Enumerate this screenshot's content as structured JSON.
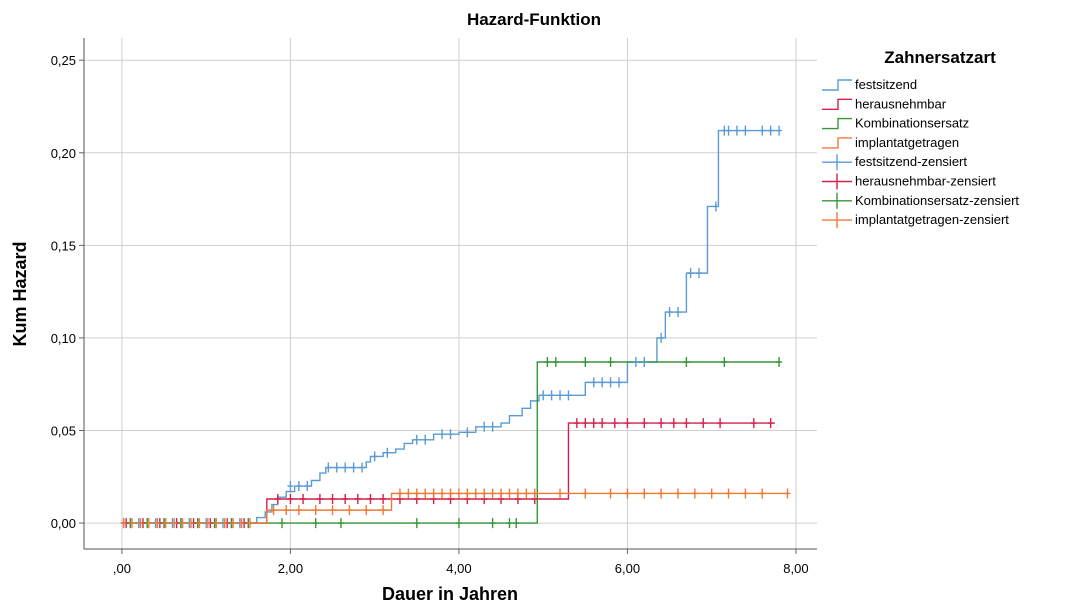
{
  "chart_data": {
    "type": "line",
    "title": "Hazard-Funktion",
    "xlabel": "Dauer in Jahren",
    "ylabel": "Kum Hazard",
    "xlim": [
      -0.45,
      8.25
    ],
    "ylim": [
      -0.014,
      0.262
    ],
    "x_ticks": [
      0,
      2,
      4,
      6,
      8
    ],
    "x_tick_labels": [
      ",00",
      "2,00",
      "4,00",
      "6,00",
      "8,00"
    ],
    "y_ticks": [
      0,
      0.05,
      0.1,
      0.15,
      0.2,
      0.25
    ],
    "y_tick_labels": [
      "0,00",
      "0,05",
      "0,10",
      "0,15",
      "0,20",
      "0,25"
    ],
    "grid": true,
    "legend": {
      "title": "Zahnersatzart",
      "placement": "right",
      "entries": [
        {
          "label": "festsitzend",
          "kind": "step",
          "color": "#5b9bd5"
        },
        {
          "label": "herausnehmbar",
          "kind": "step",
          "color": "#d6204c"
        },
        {
          "label": "Kombinationsersatz",
          "kind": "step",
          "color": "#38963a"
        },
        {
          "label": "implantatgetragen",
          "kind": "step",
          "color": "#ef7a37"
        },
        {
          "label": "festsitzend-zensiert",
          "kind": "censor",
          "color": "#5b9bd5"
        },
        {
          "label": "herausnehmbar-zensiert",
          "kind": "censor",
          "color": "#d6204c"
        },
        {
          "label": "Kombinationsersatz-zensiert",
          "kind": "censor",
          "color": "#38963a"
        },
        {
          "label": "implantatgetragen-zensiert",
          "kind": "censor",
          "color": "#ef7a37"
        }
      ]
    },
    "series": [
      {
        "name": "festsitzend",
        "color": "#5b9bd5",
        "steps": [
          [
            0,
            0
          ],
          [
            1.6,
            0.003
          ],
          [
            1.7,
            0.006
          ],
          [
            1.78,
            0.01
          ],
          [
            1.85,
            0.014
          ],
          [
            1.95,
            0.017
          ],
          [
            2.05,
            0.02
          ],
          [
            2.25,
            0.023
          ],
          [
            2.35,
            0.027
          ],
          [
            2.42,
            0.03
          ],
          [
            2.9,
            0.033
          ],
          [
            2.95,
            0.036
          ],
          [
            3.1,
            0.038
          ],
          [
            3.25,
            0.04
          ],
          [
            3.35,
            0.043
          ],
          [
            3.45,
            0.045
          ],
          [
            3.7,
            0.048
          ],
          [
            4.0,
            0.049
          ],
          [
            4.2,
            0.052
          ],
          [
            4.5,
            0.054
          ],
          [
            4.6,
            0.058
          ],
          [
            4.75,
            0.062
          ],
          [
            4.85,
            0.066
          ],
          [
            4.95,
            0.069
          ],
          [
            5.5,
            0.076
          ],
          [
            6.0,
            0.087
          ],
          [
            6.35,
            0.1
          ],
          [
            6.45,
            0.114
          ],
          [
            6.7,
            0.135
          ],
          [
            6.95,
            0.171
          ],
          [
            7.08,
            0.212
          ]
        ],
        "end_x": 7.8,
        "censored": [
          [
            0.02,
            0
          ],
          [
            0.1,
            0
          ],
          [
            0.2,
            0
          ],
          [
            0.3,
            0
          ],
          [
            0.4,
            0
          ],
          [
            0.5,
            0
          ],
          [
            0.6,
            0
          ],
          [
            0.7,
            0
          ],
          [
            0.8,
            0
          ],
          [
            0.9,
            0
          ],
          [
            1.0,
            0
          ],
          [
            1.1,
            0
          ],
          [
            1.2,
            0
          ],
          [
            1.3,
            0
          ],
          [
            1.4,
            0
          ],
          [
            1.5,
            0
          ],
          [
            2.0,
            0.02
          ],
          [
            2.1,
            0.02
          ],
          [
            2.2,
            0.02
          ],
          [
            2.45,
            0.03
          ],
          [
            2.55,
            0.03
          ],
          [
            2.65,
            0.03
          ],
          [
            2.75,
            0.03
          ],
          [
            2.85,
            0.03
          ],
          [
            3.0,
            0.036
          ],
          [
            3.15,
            0.038
          ],
          [
            3.5,
            0.045
          ],
          [
            3.6,
            0.045
          ],
          [
            3.8,
            0.048
          ],
          [
            3.9,
            0.048
          ],
          [
            4.1,
            0.049
          ],
          [
            4.3,
            0.052
          ],
          [
            4.4,
            0.052
          ],
          [
            5.0,
            0.069
          ],
          [
            5.1,
            0.069
          ],
          [
            5.2,
            0.069
          ],
          [
            5.3,
            0.069
          ],
          [
            5.6,
            0.076
          ],
          [
            5.7,
            0.076
          ],
          [
            5.8,
            0.076
          ],
          [
            5.9,
            0.076
          ],
          [
            6.1,
            0.087
          ],
          [
            6.2,
            0.087
          ],
          [
            6.4,
            0.1
          ],
          [
            6.5,
            0.114
          ],
          [
            6.6,
            0.114
          ],
          [
            6.75,
            0.135
          ],
          [
            6.85,
            0.135
          ],
          [
            7.05,
            0.171
          ],
          [
            7.15,
            0.212
          ],
          [
            7.2,
            0.212
          ],
          [
            7.3,
            0.212
          ],
          [
            7.4,
            0.212
          ],
          [
            7.6,
            0.212
          ],
          [
            7.7,
            0.212
          ],
          [
            7.8,
            0.212
          ]
        ]
      },
      {
        "name": "herausnehmbar",
        "color": "#d6204c",
        "steps": [
          [
            0,
            0
          ],
          [
            1.72,
            0.013
          ],
          [
            5.3,
            0.054
          ]
        ],
        "end_x": 7.75,
        "censored": [
          [
            0.05,
            0
          ],
          [
            0.25,
            0
          ],
          [
            0.45,
            0
          ],
          [
            0.65,
            0
          ],
          [
            0.85,
            0
          ],
          [
            1.05,
            0
          ],
          [
            1.25,
            0
          ],
          [
            1.45,
            0
          ],
          [
            1.85,
            0.013
          ],
          [
            2.0,
            0.013
          ],
          [
            2.15,
            0.013
          ],
          [
            2.35,
            0.013
          ],
          [
            2.5,
            0.013
          ],
          [
            2.65,
            0.013
          ],
          [
            2.8,
            0.013
          ],
          [
            2.95,
            0.013
          ],
          [
            3.1,
            0.013
          ],
          [
            3.3,
            0.013
          ],
          [
            3.5,
            0.013
          ],
          [
            3.7,
            0.013
          ],
          [
            3.9,
            0.013
          ],
          [
            4.1,
            0.013
          ],
          [
            4.3,
            0.013
          ],
          [
            4.5,
            0.013
          ],
          [
            4.7,
            0.013
          ],
          [
            4.9,
            0.013
          ],
          [
            5.4,
            0.054
          ],
          [
            5.5,
            0.054
          ],
          [
            5.6,
            0.054
          ],
          [
            5.7,
            0.054
          ],
          [
            5.85,
            0.054
          ],
          [
            6.0,
            0.054
          ],
          [
            6.2,
            0.054
          ],
          [
            6.4,
            0.054
          ],
          [
            6.55,
            0.054
          ],
          [
            6.7,
            0.054
          ],
          [
            6.9,
            0.054
          ],
          [
            7.1,
            0.054
          ],
          [
            7.5,
            0.054
          ],
          [
            7.7,
            0.054
          ]
        ]
      },
      {
        "name": "Kombinationsersatz",
        "color": "#38963a",
        "steps": [
          [
            0,
            0
          ],
          [
            4.93,
            0.087
          ]
        ],
        "end_x": 7.8,
        "censored": [
          [
            0.1,
            0
          ],
          [
            0.3,
            0
          ],
          [
            0.5,
            0
          ],
          [
            0.7,
            0
          ],
          [
            0.9,
            0
          ],
          [
            1.1,
            0
          ],
          [
            1.3,
            0
          ],
          [
            1.5,
            0
          ],
          [
            1.9,
            0
          ],
          [
            2.3,
            0
          ],
          [
            2.6,
            0
          ],
          [
            3.5,
            0
          ],
          [
            4.0,
            0
          ],
          [
            4.4,
            0
          ],
          [
            4.6,
            0
          ],
          [
            4.68,
            0
          ],
          [
            5.05,
            0.087
          ],
          [
            5.15,
            0.087
          ],
          [
            5.5,
            0.087
          ],
          [
            5.8,
            0.087
          ],
          [
            6.7,
            0.087
          ],
          [
            7.15,
            0.087
          ],
          [
            7.8,
            0.087
          ]
        ]
      },
      {
        "name": "implantatgetragen",
        "color": "#ef7a37",
        "steps": [
          [
            0,
            0
          ],
          [
            1.72,
            0.007
          ],
          [
            3.2,
            0.016
          ]
        ],
        "end_x": 7.9,
        "censored": [
          [
            0.02,
            0
          ],
          [
            0.12,
            0
          ],
          [
            0.22,
            0
          ],
          [
            0.32,
            0
          ],
          [
            0.42,
            0
          ],
          [
            0.52,
            0
          ],
          [
            0.62,
            0
          ],
          [
            0.72,
            0
          ],
          [
            0.82,
            0
          ],
          [
            0.92,
            0
          ],
          [
            1.02,
            0
          ],
          [
            1.12,
            0
          ],
          [
            1.22,
            0
          ],
          [
            1.32,
            0
          ],
          [
            1.42,
            0
          ],
          [
            1.52,
            0
          ],
          [
            1.8,
            0.007
          ],
          [
            1.95,
            0.007
          ],
          [
            2.1,
            0.007
          ],
          [
            2.3,
            0.007
          ],
          [
            2.5,
            0.007
          ],
          [
            2.7,
            0.007
          ],
          [
            2.9,
            0.007
          ],
          [
            3.1,
            0.007
          ],
          [
            3.3,
            0.016
          ],
          [
            3.4,
            0.016
          ],
          [
            3.5,
            0.016
          ],
          [
            3.6,
            0.016
          ],
          [
            3.7,
            0.016
          ],
          [
            3.8,
            0.016
          ],
          [
            3.9,
            0.016
          ],
          [
            4.0,
            0.016
          ],
          [
            4.1,
            0.016
          ],
          [
            4.2,
            0.016
          ],
          [
            4.3,
            0.016
          ],
          [
            4.4,
            0.016
          ],
          [
            4.5,
            0.016
          ],
          [
            4.6,
            0.016
          ],
          [
            4.7,
            0.016
          ],
          [
            4.8,
            0.016
          ],
          [
            4.9,
            0.016
          ],
          [
            5.2,
            0.016
          ],
          [
            5.5,
            0.016
          ],
          [
            5.8,
            0.016
          ],
          [
            6.0,
            0.016
          ],
          [
            6.2,
            0.016
          ],
          [
            6.4,
            0.016
          ],
          [
            6.6,
            0.016
          ],
          [
            6.8,
            0.016
          ],
          [
            7.0,
            0.016
          ],
          [
            7.2,
            0.016
          ],
          [
            7.4,
            0.016
          ],
          [
            7.6,
            0.016
          ],
          [
            7.9,
            0.016
          ]
        ]
      }
    ]
  }
}
